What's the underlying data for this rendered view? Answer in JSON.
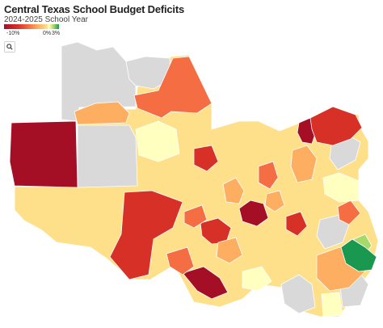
{
  "header": {
    "title": "Central Texas School Budget Deficits",
    "subtitle": "2024-2025 School Year"
  },
  "legend": {
    "min_label": "-10%",
    "mid_label": "0%",
    "max_label": "3%"
  },
  "search": {
    "icon": "search-icon"
  },
  "colors": {
    "no_data": "#d9d9d9",
    "scale": [
      "#a50f25",
      "#d73027",
      "#f46d43",
      "#fdae61",
      "#fee08b",
      "#ffffbf",
      "#a6d96a",
      "#1a9850"
    ]
  }
}
